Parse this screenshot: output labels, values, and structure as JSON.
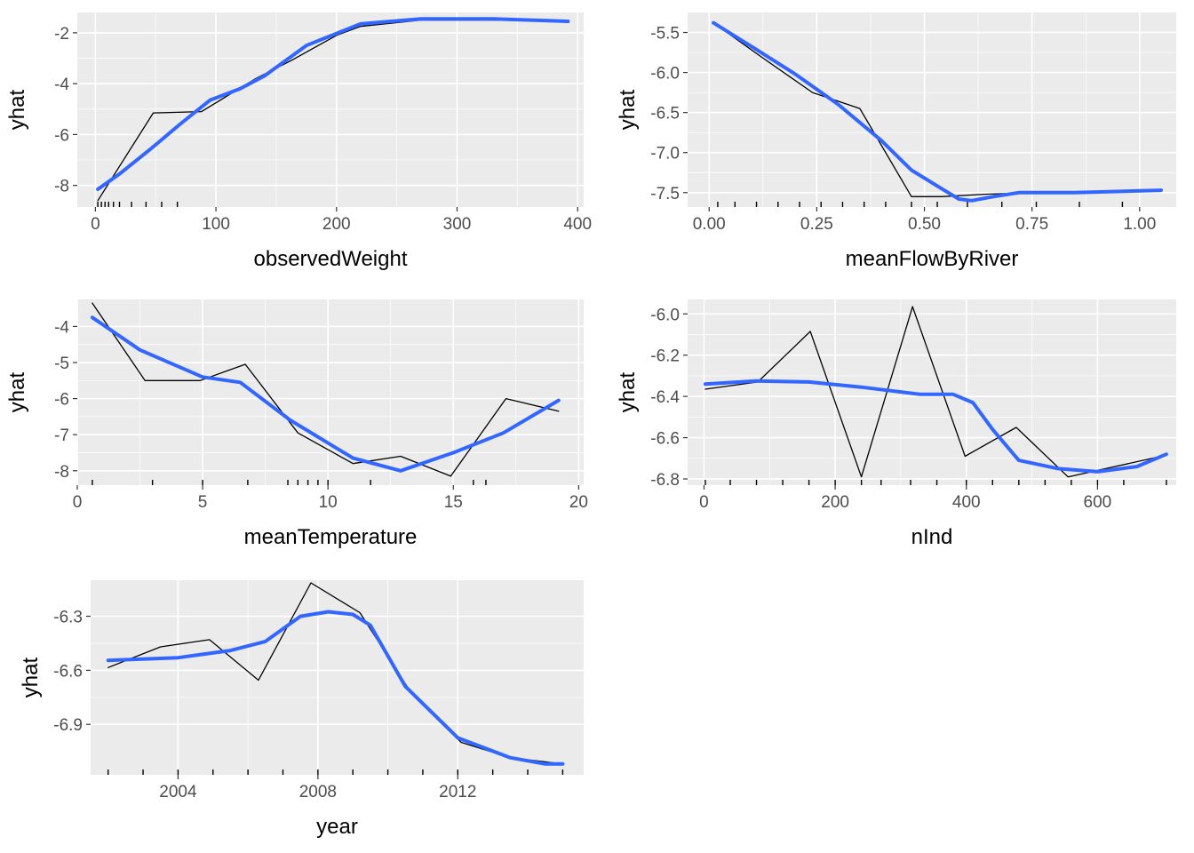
{
  "chart_data": [
    {
      "type": "line",
      "xlabel": "observedWeight",
      "ylabel": "yhat",
      "xlim": [
        -15,
        405
      ],
      "ylim": [
        -8.85,
        -1.2
      ],
      "x_ticks": [
        0,
        100,
        200,
        300,
        400
      ],
      "y_ticks": [
        -8,
        -6,
        -4,
        -2
      ],
      "y_tick_labels": [
        "-8",
        "-6",
        "-4",
        "-2"
      ],
      "grid": true,
      "rug": [
        2,
        5,
        8,
        11,
        15,
        20,
        30,
        42,
        55,
        68
      ],
      "series": [
        {
          "values": [
            [
              2,
              -8.6
            ],
            [
              10,
              -8.0
            ],
            [
              48,
              -5.15
            ],
            [
              88,
              -5.1
            ],
            [
              133,
              -3.8
            ],
            [
              162,
              -3.1
            ],
            [
              200,
              -2.1
            ],
            [
              220,
              -1.75
            ],
            [
              270,
              -1.5
            ],
            [
              330,
              -1.5
            ],
            [
              392,
              -1.55
            ]
          ]
        },
        {
          "values": [
            [
              2,
              -8.15
            ],
            [
              20,
              -7.55
            ],
            [
              45,
              -6.6
            ],
            [
              70,
              -5.6
            ],
            [
              95,
              -4.65
            ],
            [
              120,
              -4.2
            ],
            [
              140,
              -3.7
            ],
            [
              175,
              -2.5
            ],
            [
              220,
              -1.65
            ],
            [
              270,
              -1.45
            ],
            [
              330,
              -1.45
            ],
            [
              392,
              -1.55
            ]
          ]
        }
      ]
    },
    {
      "type": "line",
      "xlabel": "meanFlowByRiver",
      "ylabel": "yhat",
      "xlim": [
        -0.05,
        1.085
      ],
      "ylim": [
        -7.68,
        -5.25
      ],
      "x_ticks": [
        0,
        0.25,
        0.5,
        0.75,
        1.0
      ],
      "y_ticks": [
        -7.5,
        -7.0,
        -6.5,
        -6.0,
        -5.5
      ],
      "x_tick_labels": [
        "0.00",
        "0.25",
        "0.50",
        "0.75",
        "1.00"
      ],
      "y_tick_labels": [
        "-7.5",
        "-7.0",
        "-6.5",
        "-6.0",
        "-5.5"
      ],
      "grid": true,
      "rug": [
        0.02,
        0.06,
        0.11,
        0.16,
        0.21,
        0.26,
        0.31,
        0.36,
        0.41,
        0.47,
        0.53,
        0.6,
        0.68,
        0.76,
        0.86,
        0.96
      ],
      "series": [
        {
          "values": [
            [
              0.01,
              -5.38
            ],
            [
              0.12,
              -5.8
            ],
            [
              0.24,
              -6.25
            ],
            [
              0.35,
              -6.45
            ],
            [
              0.47,
              -7.55
            ],
            [
              0.54,
              -7.55
            ],
            [
              0.64,
              -7.52
            ],
            [
              0.75,
              -7.5
            ],
            [
              1.05,
              -7.48
            ]
          ]
        },
        {
          "values": [
            [
              0.01,
              -5.38
            ],
            [
              0.1,
              -5.68
            ],
            [
              0.2,
              -6.02
            ],
            [
              0.3,
              -6.4
            ],
            [
              0.4,
              -6.85
            ],
            [
              0.47,
              -7.22
            ],
            [
              0.54,
              -7.45
            ],
            [
              0.58,
              -7.58
            ],
            [
              0.61,
              -7.6
            ],
            [
              0.66,
              -7.55
            ],
            [
              0.72,
              -7.5
            ],
            [
              0.85,
              -7.5
            ],
            [
              1.05,
              -7.47
            ]
          ]
        }
      ]
    },
    {
      "type": "line",
      "xlabel": "meanTemperature",
      "ylabel": "yhat",
      "xlim": [
        0,
        20.2
      ],
      "ylim": [
        -8.4,
        -3.25
      ],
      "x_ticks": [
        0,
        5,
        10,
        15,
        20
      ],
      "y_ticks": [
        -8,
        -7,
        -6,
        -5,
        -4
      ],
      "y_tick_labels": [
        "-8",
        "-7",
        "-6",
        "-5",
        "-4"
      ],
      "grid": true,
      "rug": [
        0.6,
        3.0,
        5.0,
        6.8,
        8.4,
        8.8,
        9.2,
        9.6,
        10.0,
        11.7,
        15.8,
        16.3
      ],
      "series": [
        {
          "values": [
            [
              0.6,
              -3.35
            ],
            [
              2.7,
              -5.5
            ],
            [
              4.9,
              -5.5
            ],
            [
              6.7,
              -5.05
            ],
            [
              8.8,
              -6.95
            ],
            [
              11.0,
              -7.8
            ],
            [
              12.9,
              -7.6
            ],
            [
              14.9,
              -8.15
            ],
            [
              17.1,
              -6.0
            ],
            [
              19.2,
              -6.35
            ]
          ]
        },
        {
          "values": [
            [
              0.6,
              -3.75
            ],
            [
              2.5,
              -4.65
            ],
            [
              5.0,
              -5.4
            ],
            [
              6.5,
              -5.55
            ],
            [
              8.5,
              -6.6
            ],
            [
              11.0,
              -7.65
            ],
            [
              12.9,
              -8.0
            ],
            [
              15.0,
              -7.5
            ],
            [
              17.0,
              -6.95
            ],
            [
              19.2,
              -6.05
            ]
          ]
        }
      ]
    },
    {
      "type": "line",
      "xlabel": "nInd",
      "ylabel": "yhat",
      "xlim": [
        -25,
        720
      ],
      "ylim": [
        -6.83,
        -5.93
      ],
      "x_ticks": [
        0,
        200,
        400,
        600
      ],
      "y_ticks": [
        -6.8,
        -6.6,
        -6.4,
        -6.2,
        -6.0
      ],
      "y_tick_labels": [
        "-6.8",
        "-6.6",
        "-6.4",
        "-6.2",
        "-6.0"
      ],
      "grid": true,
      "rug": [
        2,
        40,
        80,
        120,
        160,
        200,
        240,
        270,
        315,
        355,
        400,
        440,
        480,
        520,
        560,
        600,
        640,
        705
      ],
      "series": [
        {
          "values": [
            [
              2,
              -6.365
            ],
            [
              82,
              -6.33
            ],
            [
              162,
              -6.085
            ],
            [
              240,
              -6.79
            ],
            [
              318,
              -5.965
            ],
            [
              398,
              -6.69
            ],
            [
              476,
              -6.55
            ],
            [
              555,
              -6.79
            ],
            [
              705,
              -6.685
            ]
          ]
        },
        {
          "values": [
            [
              2,
              -6.34
            ],
            [
              80,
              -6.325
            ],
            [
              160,
              -6.33
            ],
            [
              240,
              -6.355
            ],
            [
              330,
              -6.39
            ],
            [
              380,
              -6.39
            ],
            [
              410,
              -6.43
            ],
            [
              440,
              -6.56
            ],
            [
              480,
              -6.71
            ],
            [
              540,
              -6.75
            ],
            [
              600,
              -6.765
            ],
            [
              660,
              -6.74
            ],
            [
              705,
              -6.68
            ]
          ]
        }
      ]
    },
    {
      "type": "line",
      "xlabel": "year",
      "ylabel": "yhat",
      "xlim": [
        2001.5,
        2015.6
      ],
      "ylim": [
        -7.18,
        -6.1
      ],
      "x_ticks": [
        2004,
        2008,
        2012
      ],
      "y_ticks": [
        -6.9,
        -6.6,
        -6.3
      ],
      "y_tick_labels": [
        "-6.9",
        "-6.6",
        "-6.3"
      ],
      "grid": true,
      "rug": [
        2002,
        2003,
        2004,
        2005,
        2006,
        2007,
        2008,
        2009,
        2010,
        2011,
        2012,
        2013,
        2014,
        2015
      ],
      "series": [
        {
          "values": [
            [
              2002,
              -6.585
            ],
            [
              2003.5,
              -6.47
            ],
            [
              2004.9,
              -6.43
            ],
            [
              2006.3,
              -6.655
            ],
            [
              2007.8,
              -6.115
            ],
            [
              2009.2,
              -6.28
            ],
            [
              2010.7,
              -6.735
            ],
            [
              2012.1,
              -7.0
            ],
            [
              2013.5,
              -7.085
            ],
            [
              2015,
              -7.12
            ]
          ]
        },
        {
          "values": [
            [
              2002,
              -6.545
            ],
            [
              2004,
              -6.53
            ],
            [
              2005.5,
              -6.49
            ],
            [
              2006.5,
              -6.44
            ],
            [
              2007.5,
              -6.3
            ],
            [
              2008.3,
              -6.275
            ],
            [
              2009.0,
              -6.29
            ],
            [
              2009.5,
              -6.35
            ],
            [
              2010.5,
              -6.69
            ],
            [
              2012.0,
              -6.975
            ],
            [
              2013.5,
              -7.085
            ],
            [
              2014.5,
              -7.12
            ],
            [
              2015,
              -7.12
            ]
          ]
        }
      ]
    }
  ]
}
